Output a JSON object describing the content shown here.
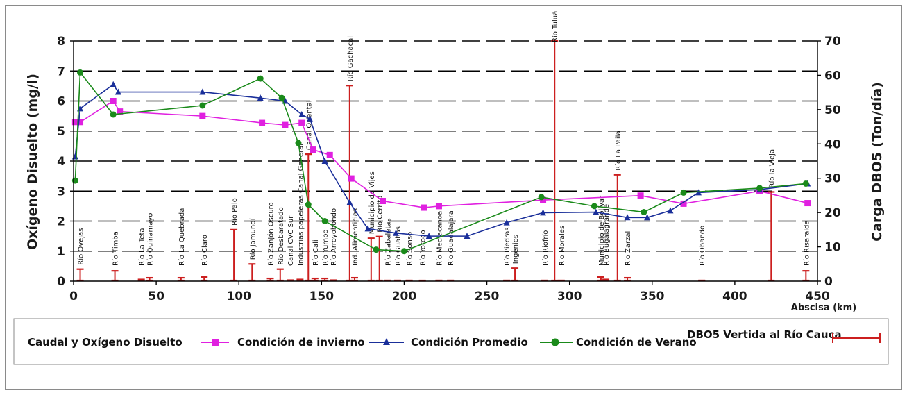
{
  "chart_data": {
    "type": "line",
    "ylabel": "Oxígeno Disuelto (mg/l)",
    "y2label": "Carga DBO5 (Ton/día)",
    "xlabel": "Abscisa (km)",
    "xlim": [
      0,
      450
    ],
    "ylim": [
      0,
      8
    ],
    "y2lim": [
      0,
      70
    ],
    "x_ticks": [
      0,
      50,
      100,
      150,
      200,
      250,
      300,
      350,
      400,
      450
    ],
    "y_ticks": [
      0,
      1,
      2,
      3,
      4,
      5,
      6,
      7,
      8
    ],
    "y2_ticks": [
      0,
      10,
      20,
      30,
      40,
      50,
      60,
      70
    ],
    "grid": "horizontal dashed",
    "legend_title": "Caudal y Oxígeno Disuelto",
    "series": [
      {
        "name": "Condición de invierno",
        "color": "#e020e0",
        "marker": "square",
        "x": [
          1,
          4,
          24,
          28,
          78,
          114,
          128,
          138,
          145,
          155,
          168,
          187,
          212,
          221,
          284,
          343,
          369,
          415,
          444
        ],
        "y": [
          5.3,
          5.3,
          6.0,
          5.65,
          5.5,
          5.27,
          5.2,
          5.27,
          4.38,
          4.2,
          3.42,
          2.67,
          2.45,
          2.5,
          2.7,
          2.85,
          2.58,
          3.0,
          2.6
        ]
      },
      {
        "name": "Condición Promedio",
        "color": "#1a2f9a",
        "marker": "triangle",
        "x": [
          1,
          4,
          24,
          27,
          78,
          113,
          128,
          138,
          143,
          152,
          167,
          178,
          195,
          215,
          238,
          262,
          284,
          316,
          335,
          347,
          361,
          378,
          415,
          444
        ],
        "y": [
          4.15,
          5.75,
          6.55,
          6.3,
          6.3,
          6.1,
          6.0,
          5.55,
          5.4,
          4.0,
          2.62,
          1.75,
          1.6,
          1.5,
          1.5,
          1.95,
          2.28,
          2.3,
          2.12,
          2.12,
          2.35,
          2.95,
          3.05,
          3.25
        ]
      },
      {
        "name": "Condición de Verano",
        "color": "#1a8a1a",
        "marker": "circle",
        "x": [
          1,
          4,
          24,
          78,
          113,
          126,
          136,
          142,
          152,
          183,
          200,
          283,
          315,
          345,
          369,
          415,
          443
        ],
        "y": [
          3.35,
          6.95,
          5.55,
          5.85,
          6.75,
          6.1,
          4.6,
          2.55,
          2.0,
          1.05,
          1.0,
          2.8,
          2.5,
          2.3,
          2.95,
          3.1,
          3.25
        ]
      }
    ],
    "dbo_series": {
      "name": "DBO5 Vertida al Río Cauca",
      "color": "#cc1f1f",
      "points": [
        {
          "x": 4,
          "v": 3.5,
          "label": "Río Ovejas"
        },
        {
          "x": 25,
          "v": 3.0,
          "label": "Río Timba"
        },
        {
          "x": 41,
          "v": 0.5,
          "label": "Río La Teta"
        },
        {
          "x": 46,
          "v": 1.0,
          "label": "Río Quinamayo"
        },
        {
          "x": 65,
          "v": 1.0,
          "label": "Río La Quebrada"
        },
        {
          "x": 79,
          "v": 1.2,
          "label": "Río Claro"
        },
        {
          "x": 97,
          "v": 15.0,
          "label": "Río Palo"
        },
        {
          "x": 108,
          "v": 5.0,
          "label": "Río Jamundí"
        },
        {
          "x": 119,
          "v": 0.8,
          "label": "Río Zanjón Oscuro"
        },
        {
          "x": 125,
          "v": 3.5,
          "label": "Río Desbaratado"
        },
        {
          "x": 131,
          "v": 0.3,
          "label": "Canal CVC Sur"
        },
        {
          "x": 137,
          "v": 0.5,
          "label": "Industrias papeleras Canal General"
        },
        {
          "x": 142,
          "v": 37.0,
          "label": "Canal Oriental"
        },
        {
          "x": 146,
          "v": 0.8,
          "label": "Río Cali"
        },
        {
          "x": 152,
          "v": 0.8,
          "label": "Río Yumbo"
        },
        {
          "x": 157,
          "v": 0.3,
          "label": "Río Arroyohondo"
        },
        {
          "x": 167,
          "v": 57.0,
          "label": "Río Gachacal"
        },
        {
          "x": 170,
          "v": 1.0,
          "label": "Ind. Alimenticias"
        },
        {
          "x": 180,
          "v": 12.5,
          "label": "Municipio de Vijes"
        },
        {
          "x": 185,
          "v": 13.0,
          "label": "Río Cerrito"
        },
        {
          "x": 190,
          "v": 0.2,
          "label": "Río Zabaletas"
        },
        {
          "x": 196,
          "v": 0.2,
          "label": "Río Guabas"
        },
        {
          "x": 203,
          "v": 0.2,
          "label": "Río Sonso"
        },
        {
          "x": 211,
          "v": 0.1,
          "label": "Río Yotoco"
        },
        {
          "x": 221,
          "v": 0.2,
          "label": "Río Mediacanoa"
        },
        {
          "x": 228,
          "v": 0.2,
          "label": "Río Guadalajara"
        },
        {
          "x": 262,
          "v": 0.2,
          "label": "Río Piedras"
        },
        {
          "x": 267,
          "v": 3.8,
          "label": "Ingenios"
        },
        {
          "x": 285,
          "v": 0.2,
          "label": "Río Riofrío"
        },
        {
          "x": 291,
          "v": 70.0,
          "label": "Río Tuluá"
        },
        {
          "x": 295,
          "v": 0.2,
          "label": "Río Morales"
        },
        {
          "x": 319,
          "v": 1.2,
          "label": "Municipio de Bolívar"
        },
        {
          "x": 322,
          "v": 0.5,
          "label": "Río Bugalagrande"
        },
        {
          "x": 329,
          "v": 31.0,
          "label": "Río La Paila"
        },
        {
          "x": 335,
          "v": 1.0,
          "label": "Río Zarzal"
        },
        {
          "x": 380,
          "v": 0.2,
          "label": "Río Obando"
        },
        {
          "x": 422,
          "v": 26.0,
          "label": "Río la Vieja"
        },
        {
          "x": 443,
          "v": 3.0,
          "label": "Río Risaralda"
        }
      ]
    }
  }
}
